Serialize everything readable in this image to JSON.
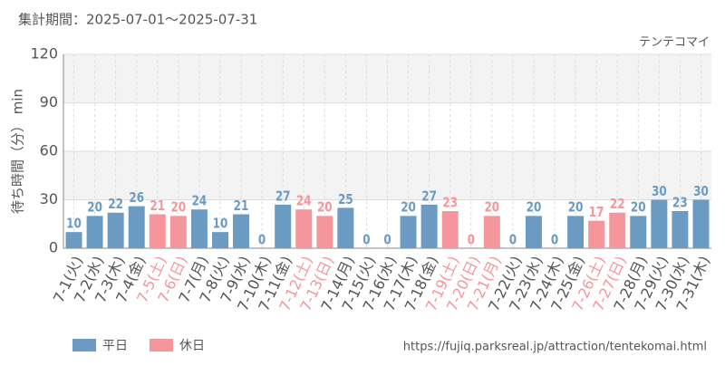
{
  "chart_data": {
    "type": "bar",
    "title": "集計期間：2025-07-01～2025-07-31",
    "subtitle": "テンテコマイ",
    "y_label": "待ち時間（分） min",
    "source": "https://fujiq.parksreal.jp/attraction/tentekomai.html",
    "categories": [
      "7-1(火)",
      "7-2(水)",
      "7-3(木)",
      "7-4(金)",
      "7-5(土)",
      "7-6(日)",
      "7-7(月)",
      "7-8(火)",
      "7-9(水)",
      "7-10(木)",
      "7-11(金)",
      "7-12(土)",
      "7-13(日)",
      "7-14(月)",
      "7-15(火)",
      "7-16(水)",
      "7-17(木)",
      "7-18(金)",
      "7-19(土)",
      "7-20(日)",
      "7-21(月)",
      "7-22(火)",
      "7-23(水)",
      "7-24(木)",
      "7-25(金)",
      "7-26(土)",
      "7-27(日)",
      "7-28(月)",
      "7-29(火)",
      "7-30(水)",
      "7-31(木)"
    ],
    "series": [
      {
        "name": "平日",
        "color": "#6b9bc3",
        "values": [
          10,
          20,
          22,
          26,
          null,
          null,
          24,
          10,
          21,
          0,
          27,
          null,
          null,
          25,
          0,
          0,
          20,
          27,
          null,
          null,
          null,
          0,
          20,
          0,
          20,
          null,
          null,
          20,
          30,
          23,
          30
        ]
      },
      {
        "name": "休日",
        "color": "#f4969b",
        "values": [
          null,
          null,
          null,
          null,
          21,
          20,
          null,
          null,
          null,
          null,
          null,
          24,
          20,
          null,
          null,
          null,
          null,
          null,
          23,
          0,
          20,
          null,
          null,
          null,
          null,
          17,
          22,
          null,
          null,
          null,
          null
        ]
      }
    ],
    "ylim": [
      0,
      120
    ],
    "yticks": [
      0,
      30,
      60,
      90,
      120
    ],
    "grid": true
  }
}
